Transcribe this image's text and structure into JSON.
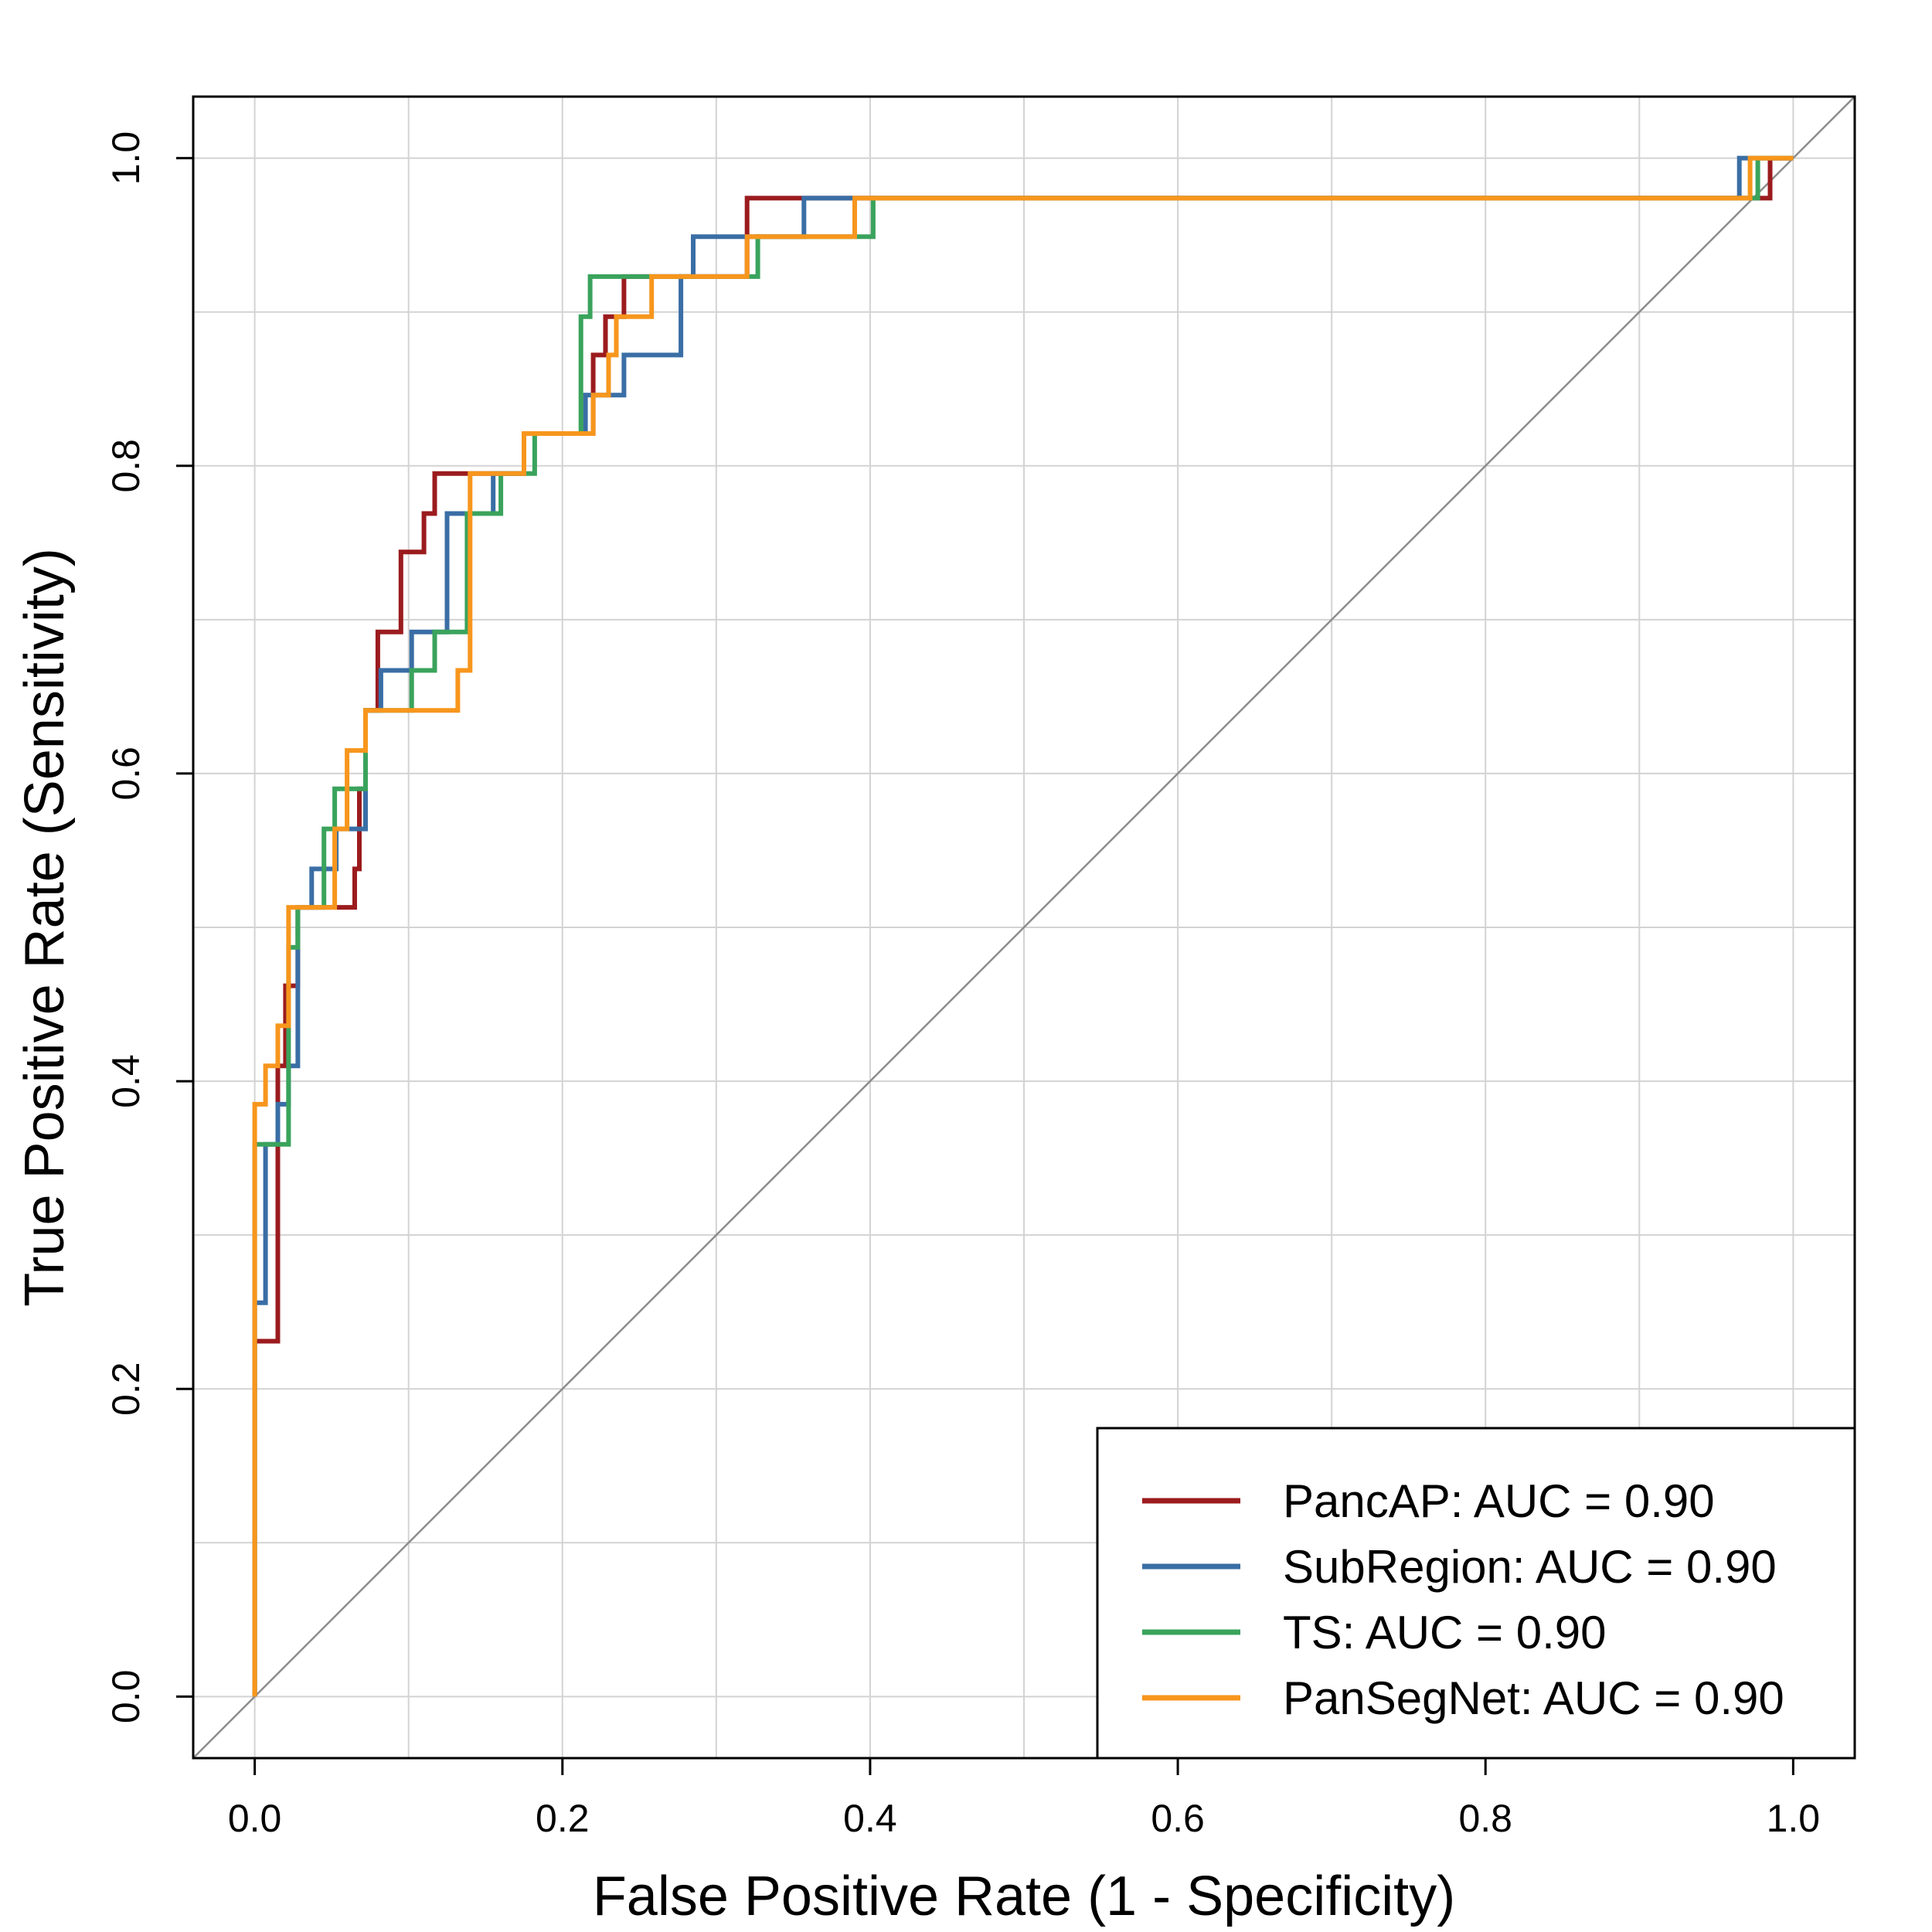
{
  "chart_data": {
    "type": "line",
    "title": "",
    "xlabel": "False Positive Rate (1 - Specificity)",
    "ylabel": "True Positive Rate (Sensitivity)",
    "xlim": [
      -0.04,
      1.04
    ],
    "ylim": [
      -0.04,
      1.04
    ],
    "xticks": [
      0.0,
      0.2,
      0.4,
      0.6,
      0.8,
      1.0
    ],
    "yticks": [
      0.0,
      0.2,
      0.4,
      0.6,
      0.8,
      1.0
    ],
    "xtick_labels": [
      "0.0",
      "0.2",
      "0.4",
      "0.6",
      "0.8",
      "1.0"
    ],
    "ytick_labels": [
      "0.0",
      "0.2",
      "0.4",
      "0.6",
      "0.8",
      "1.0"
    ],
    "grid": true,
    "grid_step": 0.1,
    "diagonal_reference": true,
    "legend_position": "bottom-right",
    "series": [
      {
        "name": "PancAP",
        "label": "PancAP: AUC = 0.90",
        "color": "#9B1B1E",
        "points": [
          [
            0,
            0
          ],
          [
            0,
            0.231
          ],
          [
            0.015,
            0.231
          ],
          [
            0.015,
            0.41
          ],
          [
            0.02,
            0.41
          ],
          [
            0.02,
            0.462
          ],
          [
            0.028,
            0.462
          ],
          [
            0.028,
            0.513
          ],
          [
            0.065,
            0.513
          ],
          [
            0.065,
            0.538
          ],
          [
            0.068,
            0.538
          ],
          [
            0.068,
            0.59
          ],
          [
            0.072,
            0.59
          ],
          [
            0.072,
            0.641
          ],
          [
            0.08,
            0.641
          ],
          [
            0.08,
            0.692
          ],
          [
            0.095,
            0.692
          ],
          [
            0.095,
            0.744
          ],
          [
            0.11,
            0.744
          ],
          [
            0.11,
            0.769
          ],
          [
            0.117,
            0.769
          ],
          [
            0.117,
            0.795
          ],
          [
            0.175,
            0.795
          ],
          [
            0.175,
            0.821
          ],
          [
            0.22,
            0.821
          ],
          [
            0.22,
            0.872
          ],
          [
            0.228,
            0.872
          ],
          [
            0.228,
            0.897
          ],
          [
            0.24,
            0.897
          ],
          [
            0.24,
            0.923
          ],
          [
            0.32,
            0.923
          ],
          [
            0.32,
            0.974
          ],
          [
            0.985,
            0.974
          ],
          [
            0.985,
            1
          ],
          [
            1,
            1
          ]
        ]
      },
      {
        "name": "SubRegion",
        "label": "SubRegion: AUC = 0.90",
        "color": "#3A6EA5",
        "points": [
          [
            0,
            0
          ],
          [
            0,
            0.256
          ],
          [
            0.007,
            0.256
          ],
          [
            0.007,
            0.359
          ],
          [
            0.015,
            0.359
          ],
          [
            0.015,
            0.385
          ],
          [
            0.022,
            0.385
          ],
          [
            0.022,
            0.41
          ],
          [
            0.028,
            0.41
          ],
          [
            0.028,
            0.513
          ],
          [
            0.037,
            0.513
          ],
          [
            0.037,
            0.538
          ],
          [
            0.053,
            0.538
          ],
          [
            0.053,
            0.564
          ],
          [
            0.072,
            0.564
          ],
          [
            0.072,
            0.641
          ],
          [
            0.082,
            0.641
          ],
          [
            0.082,
            0.667
          ],
          [
            0.102,
            0.667
          ],
          [
            0.102,
            0.692
          ],
          [
            0.125,
            0.692
          ],
          [
            0.125,
            0.769
          ],
          [
            0.155,
            0.769
          ],
          [
            0.155,
            0.795
          ],
          [
            0.175,
            0.795
          ],
          [
            0.175,
            0.821
          ],
          [
            0.215,
            0.821
          ],
          [
            0.215,
            0.846
          ],
          [
            0.24,
            0.846
          ],
          [
            0.24,
            0.872
          ],
          [
            0.277,
            0.872
          ],
          [
            0.277,
            0.923
          ],
          [
            0.285,
            0.923
          ],
          [
            0.285,
            0.949
          ],
          [
            0.357,
            0.949
          ],
          [
            0.357,
            0.974
          ],
          [
            0.965,
            0.974
          ],
          [
            0.965,
            1
          ],
          [
            1,
            1
          ]
        ]
      },
      {
        "name": "TS",
        "label": "TS: AUC = 0.90",
        "color": "#3AA35C",
        "points": [
          [
            0,
            0
          ],
          [
            0,
            0.359
          ],
          [
            0.022,
            0.359
          ],
          [
            0.022,
            0.487
          ],
          [
            0.028,
            0.487
          ],
          [
            0.028,
            0.513
          ],
          [
            0.045,
            0.513
          ],
          [
            0.045,
            0.564
          ],
          [
            0.052,
            0.564
          ],
          [
            0.052,
            0.59
          ],
          [
            0.072,
            0.59
          ],
          [
            0.072,
            0.641
          ],
          [
            0.102,
            0.641
          ],
          [
            0.102,
            0.667
          ],
          [
            0.117,
            0.667
          ],
          [
            0.117,
            0.692
          ],
          [
            0.138,
            0.692
          ],
          [
            0.138,
            0.769
          ],
          [
            0.16,
            0.769
          ],
          [
            0.16,
            0.795
          ],
          [
            0.182,
            0.795
          ],
          [
            0.182,
            0.821
          ],
          [
            0.212,
            0.821
          ],
          [
            0.212,
            0.897
          ],
          [
            0.218,
            0.897
          ],
          [
            0.218,
            0.923
          ],
          [
            0.327,
            0.923
          ],
          [
            0.327,
            0.949
          ],
          [
            0.402,
            0.949
          ],
          [
            0.402,
            0.974
          ],
          [
            0.977,
            0.974
          ],
          [
            0.977,
            1
          ],
          [
            1,
            1
          ]
        ]
      },
      {
        "name": "PanSegNet",
        "label": "PanSegNet: AUC = 0.90",
        "color": "#F7961D",
        "points": [
          [
            0,
            0
          ],
          [
            0,
            0.385
          ],
          [
            0.007,
            0.385
          ],
          [
            0.007,
            0.41
          ],
          [
            0.015,
            0.41
          ],
          [
            0.015,
            0.436
          ],
          [
            0.022,
            0.436
          ],
          [
            0.022,
            0.513
          ],
          [
            0.052,
            0.513
          ],
          [
            0.052,
            0.564
          ],
          [
            0.06,
            0.564
          ],
          [
            0.06,
            0.615
          ],
          [
            0.072,
            0.615
          ],
          [
            0.072,
            0.641
          ],
          [
            0.132,
            0.641
          ],
          [
            0.132,
            0.667
          ],
          [
            0.14,
            0.667
          ],
          [
            0.14,
            0.795
          ],
          [
            0.175,
            0.795
          ],
          [
            0.175,
            0.821
          ],
          [
            0.22,
            0.821
          ],
          [
            0.22,
            0.846
          ],
          [
            0.23,
            0.846
          ],
          [
            0.23,
            0.872
          ],
          [
            0.235,
            0.872
          ],
          [
            0.235,
            0.897
          ],
          [
            0.258,
            0.897
          ],
          [
            0.258,
            0.923
          ],
          [
            0.32,
            0.923
          ],
          [
            0.32,
            0.949
          ],
          [
            0.39,
            0.949
          ],
          [
            0.39,
            0.974
          ],
          [
            0.972,
            0.974
          ],
          [
            0.972,
            1
          ],
          [
            1,
            1
          ]
        ]
      }
    ]
  }
}
